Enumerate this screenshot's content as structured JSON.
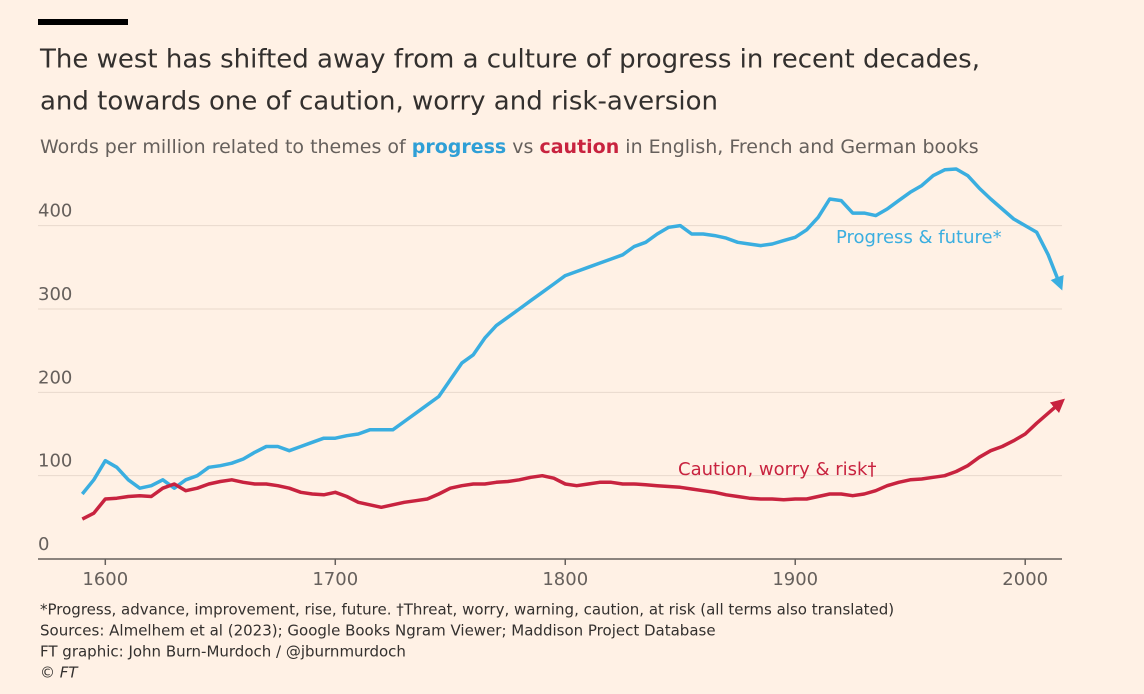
{
  "chart_data": {
    "type": "line",
    "title": [
      "The west has shifted away from a culture of progress in recent decades,",
      "and towards one of caution, worry and risk-aversion"
    ],
    "subtitle": [
      {
        "text": "Words per million related to themes of "
      },
      {
        "text": "progress",
        "color": "#2f9fd6"
      },
      {
        "text": " vs "
      },
      {
        "text": "caution",
        "color": "#c8233f"
      },
      {
        "text": " in English, French and German books"
      }
    ],
    "x": [
      1590,
      1595,
      1600,
      1605,
      1610,
      1615,
      1620,
      1625,
      1630,
      1635,
      1640,
      1645,
      1650,
      1655,
      1660,
      1665,
      1670,
      1675,
      1680,
      1685,
      1690,
      1695,
      1700,
      1705,
      1710,
      1715,
      1720,
      1725,
      1730,
      1735,
      1740,
      1745,
      1750,
      1755,
      1760,
      1765,
      1770,
      1775,
      1780,
      1785,
      1790,
      1795,
      1800,
      1805,
      1810,
      1815,
      1820,
      1825,
      1830,
      1835,
      1840,
      1845,
      1850,
      1855,
      1860,
      1865,
      1870,
      1875,
      1880,
      1885,
      1890,
      1895,
      1900,
      1905,
      1910,
      1915,
      1920,
      1925,
      1930,
      1935,
      1940,
      1945,
      1950,
      1955,
      1960,
      1965,
      1970,
      1975,
      1980,
      1985,
      1990,
      1995,
      2000,
      2005,
      2010,
      2015
    ],
    "series": [
      {
        "name": "Progress & future*",
        "color": "#3aaee0",
        "values": [
          78,
          95,
          118,
          110,
          95,
          85,
          88,
          95,
          85,
          95,
          100,
          110,
          112,
          115,
          120,
          128,
          135,
          135,
          130,
          135,
          140,
          145,
          145,
          148,
          150,
          155,
          155,
          155,
          165,
          175,
          185,
          195,
          215,
          235,
          245,
          265,
          280,
          290,
          300,
          310,
          320,
          330,
          340,
          345,
          350,
          355,
          360,
          365,
          375,
          380,
          390,
          398,
          400,
          390,
          390,
          388,
          385,
          380,
          378,
          376,
          378,
          382,
          386,
          395,
          410,
          432,
          430,
          415,
          415,
          412,
          420,
          430,
          440,
          448,
          460,
          467,
          468,
          460,
          445,
          432,
          420,
          408,
          400,
          392,
          365,
          330
        ]
      },
      {
        "name": "Caution, worry & risk†",
        "color": "#c8233f",
        "values": [
          48,
          55,
          72,
          73,
          75,
          76,
          75,
          85,
          90,
          82,
          85,
          90,
          93,
          95,
          92,
          90,
          90,
          88,
          85,
          80,
          78,
          77,
          80,
          75,
          68,
          65,
          62,
          65,
          68,
          70,
          72,
          78,
          85,
          88,
          90,
          90,
          92,
          93,
          95,
          98,
          100,
          97,
          90,
          88,
          90,
          92,
          92,
          90,
          90,
          89,
          88,
          87,
          86,
          84,
          82,
          80,
          77,
          75,
          73,
          72,
          72,
          71,
          72,
          72,
          75,
          78,
          78,
          76,
          78,
          82,
          88,
          92,
          95,
          96,
          98,
          100,
          105,
          112,
          122,
          130,
          135,
          142,
          150,
          163,
          175,
          187
        ]
      }
    ],
    "xlim": [
      1589,
      2016
    ],
    "xticks": [
      1600,
      1700,
      1800,
      1900,
      2000
    ],
    "ylim": [
      0,
      470
    ],
    "yticks": [
      0,
      100,
      200,
      300,
      400
    ],
    "grid": true,
    "notes": [
      "*Progress, advance, improvement, rise, future. †Threat, worry, warning, caution, at risk (all terms also translated)",
      "Sources: Almelhem et al (2023); Google Books Ngram Viewer; Maddison Project Database",
      "FT graphic: John Burn-Murdoch / @jburnmurdoch",
      "© FT"
    ]
  }
}
